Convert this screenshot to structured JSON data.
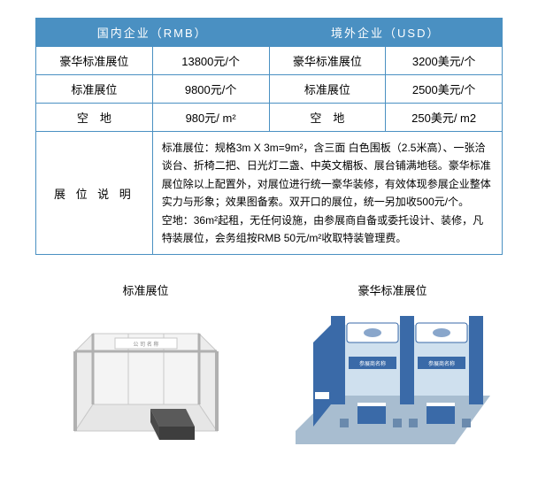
{
  "table": {
    "head_domestic": "国内企业（RMB）",
    "head_foreign": "境外企业（USD）",
    "rows": [
      {
        "d_name": "豪华标准展位",
        "d_price": "13800元/个",
        "f_name": "豪华标准展位",
        "f_price": "3200美元/个"
      },
      {
        "d_name": "标准展位",
        "d_price": "9800元/个",
        "f_name": "标准展位",
        "f_price": "2500美元/个"
      },
      {
        "d_name": "空　地",
        "d_price": "980元/ m²",
        "f_name": "空　地",
        "f_price": "250美元/ m2"
      }
    ],
    "desc_label": "展 位 说 明",
    "desc_text": "标准展位：规格3m X 3m=9m²，含三面 白色围板（2.5米高）、一张洽谈台、折椅二把、日光灯二盏、中英文楣板、展台铺满地毯。豪华标准展位除以上配置外，对展位进行统一豪华装修，有效体现参展企业整体实力与形象；效果图备索。双开口的展位，统一另加收500元/个。\n空地：36m²起租，无任何设施，由参展商自备或委托设计、装修，凡特装展位，会务组按RMB 50元/m²收取特装管理费。"
  },
  "fig_std_title": "标准展位",
  "fig_lux_title": "豪华标准展位",
  "colors": {
    "border": "#4a90c2",
    "header_bg": "#4a90c2",
    "header_fg": "#ffffff",
    "std_frame": "#c8c8c8",
    "std_panel": "#f4f4f4",
    "std_desk": "#5a5a5a",
    "lux_blue": "#3a6aa8",
    "lux_light": "#cfe0ee",
    "lux_floor": "#a8bdd0"
  }
}
